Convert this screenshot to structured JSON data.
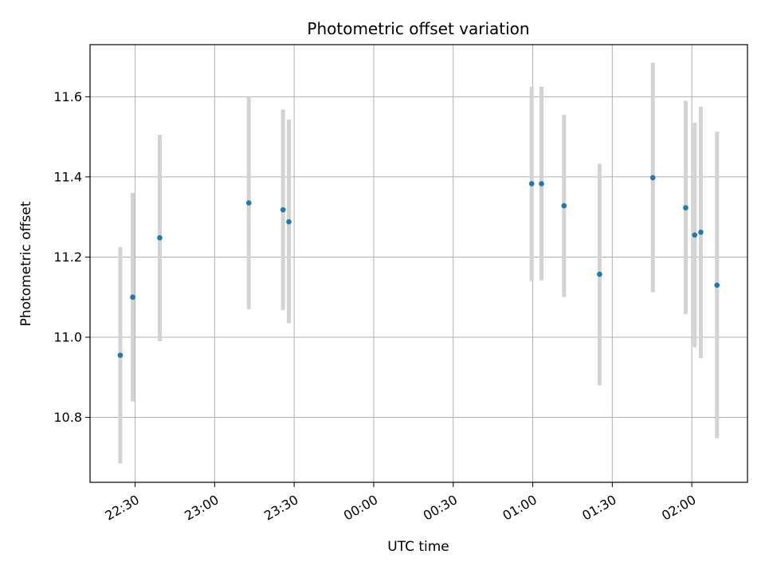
{
  "chart_data": {
    "type": "scatter",
    "title": "Photometric offset variation",
    "xlabel": "UTC time",
    "ylabel": "Photometric offset",
    "x_tick_labels": [
      "22:30",
      "23:00",
      "23:30",
      "00:00",
      "00:30",
      "01:00",
      "01:30",
      "02:00"
    ],
    "x_tick_minutes": [
      0,
      30,
      60,
      90,
      120,
      150,
      180,
      210
    ],
    "y_ticks": [
      10.8,
      11.0,
      11.2,
      11.4,
      11.6
    ],
    "y_tick_labels": [
      "10.8",
      "11.0",
      "11.2",
      "11.4",
      "11.6"
    ],
    "xlim_minutes": [
      -17,
      231
    ],
    "ylim": [
      10.638,
      11.73
    ],
    "grid": true,
    "point_color": "#1f77b4",
    "errorbar_color": "#d3d3d3",
    "series": [
      {
        "points": [
          {
            "t": "22:24",
            "x": -5.6,
            "y": 10.955,
            "ylo": 10.685,
            "yhi": 11.225
          },
          {
            "t": "22:29",
            "x": -0.9,
            "y": 11.1,
            "ylo": 10.84,
            "yhi": 11.36
          },
          {
            "t": "22:39",
            "x": 9.3,
            "y": 11.248,
            "ylo": 10.99,
            "yhi": 11.505
          },
          {
            "t": "23:13",
            "x": 42.9,
            "y": 11.335,
            "ylo": 11.07,
            "yhi": 11.6
          },
          {
            "t": "23:26",
            "x": 55.8,
            "y": 11.318,
            "ylo": 11.068,
            "yhi": 11.568
          },
          {
            "t": "23:28",
            "x": 58.0,
            "y": 11.288,
            "ylo": 11.035,
            "yhi": 11.543
          },
          {
            "t": "00:59",
            "x": 149.6,
            "y": 11.383,
            "ylo": 11.14,
            "yhi": 11.625
          },
          {
            "t": "01:03",
            "x": 153.3,
            "y": 11.383,
            "ylo": 11.142,
            "yhi": 11.625
          },
          {
            "t": "01:12",
            "x": 161.8,
            "y": 11.328,
            "ylo": 11.1,
            "yhi": 11.555
          },
          {
            "t": "01:25",
            "x": 175.2,
            "y": 11.157,
            "ylo": 10.88,
            "yhi": 11.433
          },
          {
            "t": "01:45",
            "x": 195.3,
            "y": 11.398,
            "ylo": 11.112,
            "yhi": 11.685
          },
          {
            "t": "01:57",
            "x": 207.7,
            "y": 11.323,
            "ylo": 11.058,
            "yhi": 11.59
          },
          {
            "t": "02:01",
            "x": 211.1,
            "y": 11.255,
            "ylo": 10.975,
            "yhi": 11.535
          },
          {
            "t": "02:03",
            "x": 213.4,
            "y": 11.262,
            "ylo": 10.948,
            "yhi": 11.575
          },
          {
            "t": "02:10",
            "x": 219.5,
            "y": 11.13,
            "ylo": 10.748,
            "yhi": 11.513
          }
        ]
      }
    ]
  }
}
